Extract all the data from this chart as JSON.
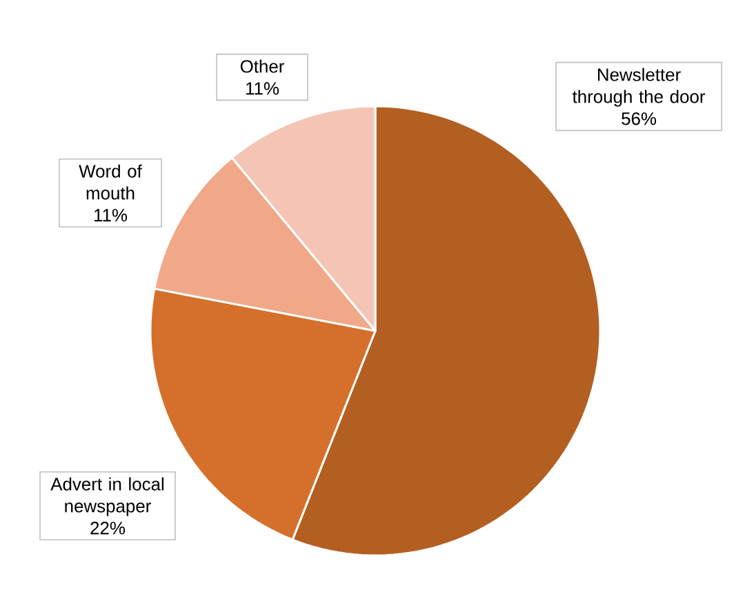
{
  "chart_data": {
    "type": "pie",
    "categories": [
      "Newsletter through the door",
      "Advert in local newspaper",
      "Word of mouth",
      "Other"
    ],
    "values": [
      56,
      22,
      11,
      11
    ],
    "value_labels": [
      "56%",
      "22%",
      "11%",
      "11%"
    ],
    "colors": [
      "#b45f22",
      "#d4702c",
      "#f0a888",
      "#f4c5b5"
    ]
  }
}
